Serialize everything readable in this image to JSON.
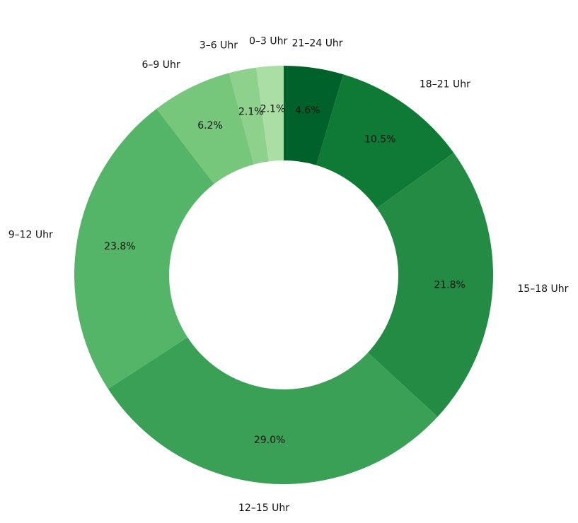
{
  "chart_data": {
    "type": "pie",
    "style": "donut",
    "direction": "clockwise",
    "start": "top",
    "categories": [
      "21–24 Uhr",
      "18–21 Uhr",
      "15–18 Uhr",
      "12–15 Uhr",
      "9–12 Uhr",
      "6–9 Uhr",
      "3–6 Uhr",
      "0–3 Uhr"
    ],
    "values": [
      4.6,
      10.5,
      21.8,
      29.0,
      23.8,
      6.2,
      2.1,
      2.1
    ],
    "value_labels": [
      "4.6%",
      "10.5%",
      "21.8%",
      "29.0%",
      "23.8%",
      "6.2%",
      "2.1%",
      "2.1%"
    ],
    "colors": [
      "#00612a",
      "#0e7a36",
      "#248b45",
      "#39a055",
      "#54b468",
      "#76c67b",
      "#8dd18c",
      "#aadea4"
    ],
    "title": "",
    "legend": "none"
  }
}
